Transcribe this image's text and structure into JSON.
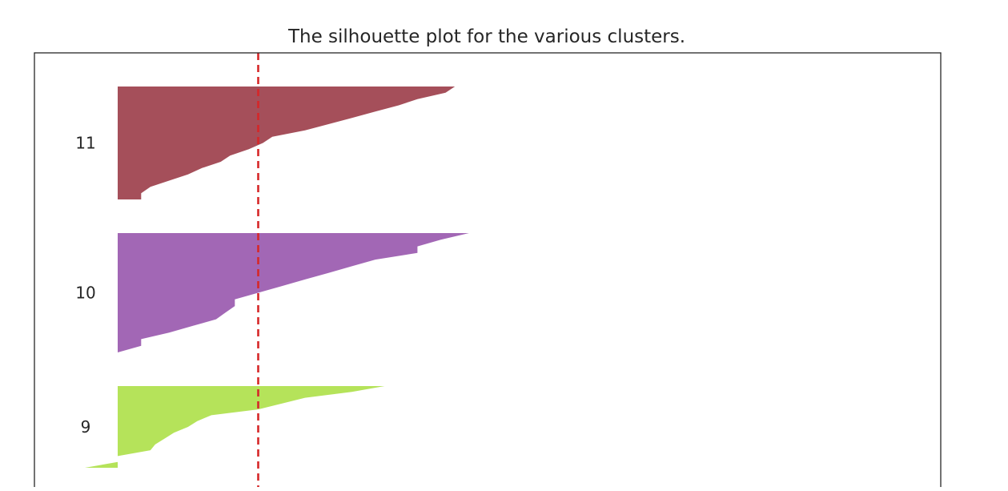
{
  "chart_data": {
    "type": "area",
    "title": "The silhouette plot for the various clusters.",
    "xlabel": "",
    "ylabel": "",
    "average_line": {
      "x": 0.3,
      "color": "#d62728",
      "style": "dashed"
    },
    "clusters": [
      {
        "label": "11",
        "color": "#a54f5a",
        "values": [
          0.72,
          0.7,
          0.64,
          0.6,
          0.55,
          0.5,
          0.45,
          0.4,
          0.33,
          0.31,
          0.28,
          0.24,
          0.22,
          0.18,
          0.15,
          0.11,
          0.07,
          0.05,
          0.05
        ]
      },
      {
        "label": "10",
        "color": "#a267b5",
        "values": [
          0.75,
          0.69,
          0.64,
          0.64,
          0.55,
          0.5,
          0.45,
          0.4,
          0.35,
          0.3,
          0.25,
          0.25,
          0.23,
          0.21,
          0.16,
          0.11,
          0.05,
          0.05,
          0.0
        ]
      },
      {
        "label": "9",
        "color": "#b5e35a",
        "values": [
          0.57,
          0.5,
          0.4,
          0.35,
          0.3,
          0.2,
          0.17,
          0.15,
          0.12,
          0.1,
          0.08,
          0.07,
          0.0,
          0.0,
          -0.07
        ]
      }
    ]
  }
}
